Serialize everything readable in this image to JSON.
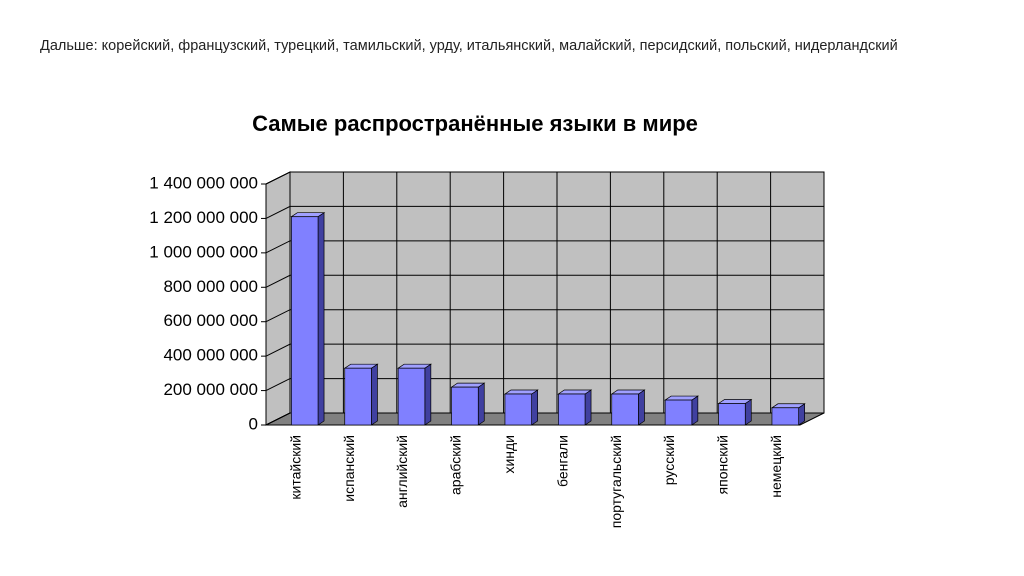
{
  "header": "Дальше: корейский, французский, турецкий, тамильский, урду, итальянский, малайский, персидский, польский, нидерландский",
  "chart_data": {
    "type": "bar3d",
    "title": "Самые распространённые языки в мире",
    "categories": [
      "китайский",
      "испанский",
      "английский",
      "арабский",
      "хинди",
      "бенгали",
      "португальский",
      "русский",
      "японский",
      "немецкий"
    ],
    "values": [
      1210000000,
      330000000,
      330000000,
      220000000,
      180000000,
      180000000,
      180000000,
      145000000,
      125000000,
      100000000
    ],
    "color": "#8080ff",
    "ylim": [
      0,
      1400000000
    ],
    "yticks": [
      0,
      {
        "value": 200000000,
        "label": "200 000 000"
      },
      {
        "value": 400000000,
        "label": "400 000 000"
      },
      {
        "value": 600000000,
        "label": "600 000 000"
      },
      {
        "value": 800000000,
        "label": "800 000 000"
      },
      {
        "value": 1000000000,
        "label": "1 000 000 000"
      },
      {
        "value": 1200000000,
        "label": "1 200 000 000"
      },
      {
        "value": 1400000000,
        "label": "1 400 000 000"
      }
    ],
    "grid": true
  }
}
